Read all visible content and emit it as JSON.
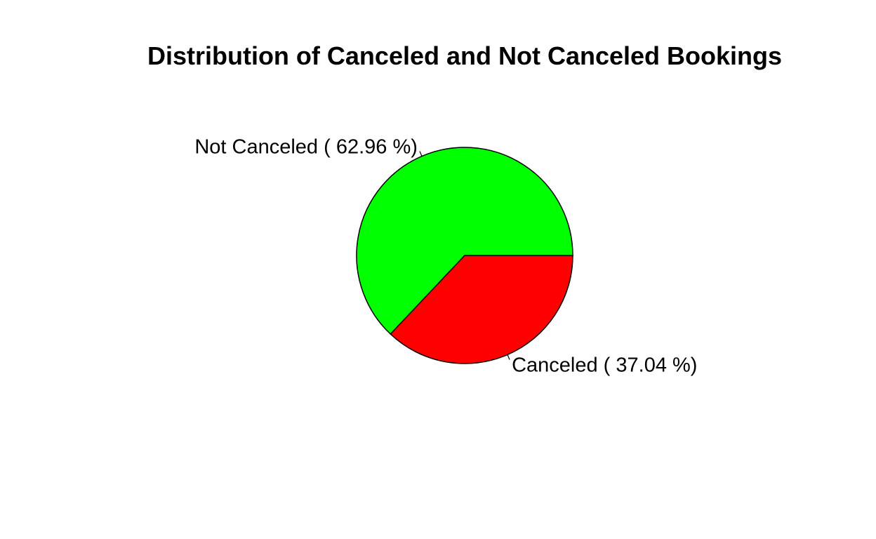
{
  "chart_data": {
    "type": "pie",
    "title": "Distribution of Canceled and Not Canceled Bookings",
    "start_angle_deg": 0,
    "direction": "counterclockwise",
    "slices": [
      {
        "category": "Not Canceled",
        "percent": 62.96,
        "label": "Not Canceled ( 62.96 %)",
        "color": "#00ff00"
      },
      {
        "category": "Canceled",
        "percent": 37.04,
        "label": "Canceled ( 37.04 %)",
        "color": "#ff0000"
      }
    ],
    "legend": "none",
    "grid": false
  }
}
